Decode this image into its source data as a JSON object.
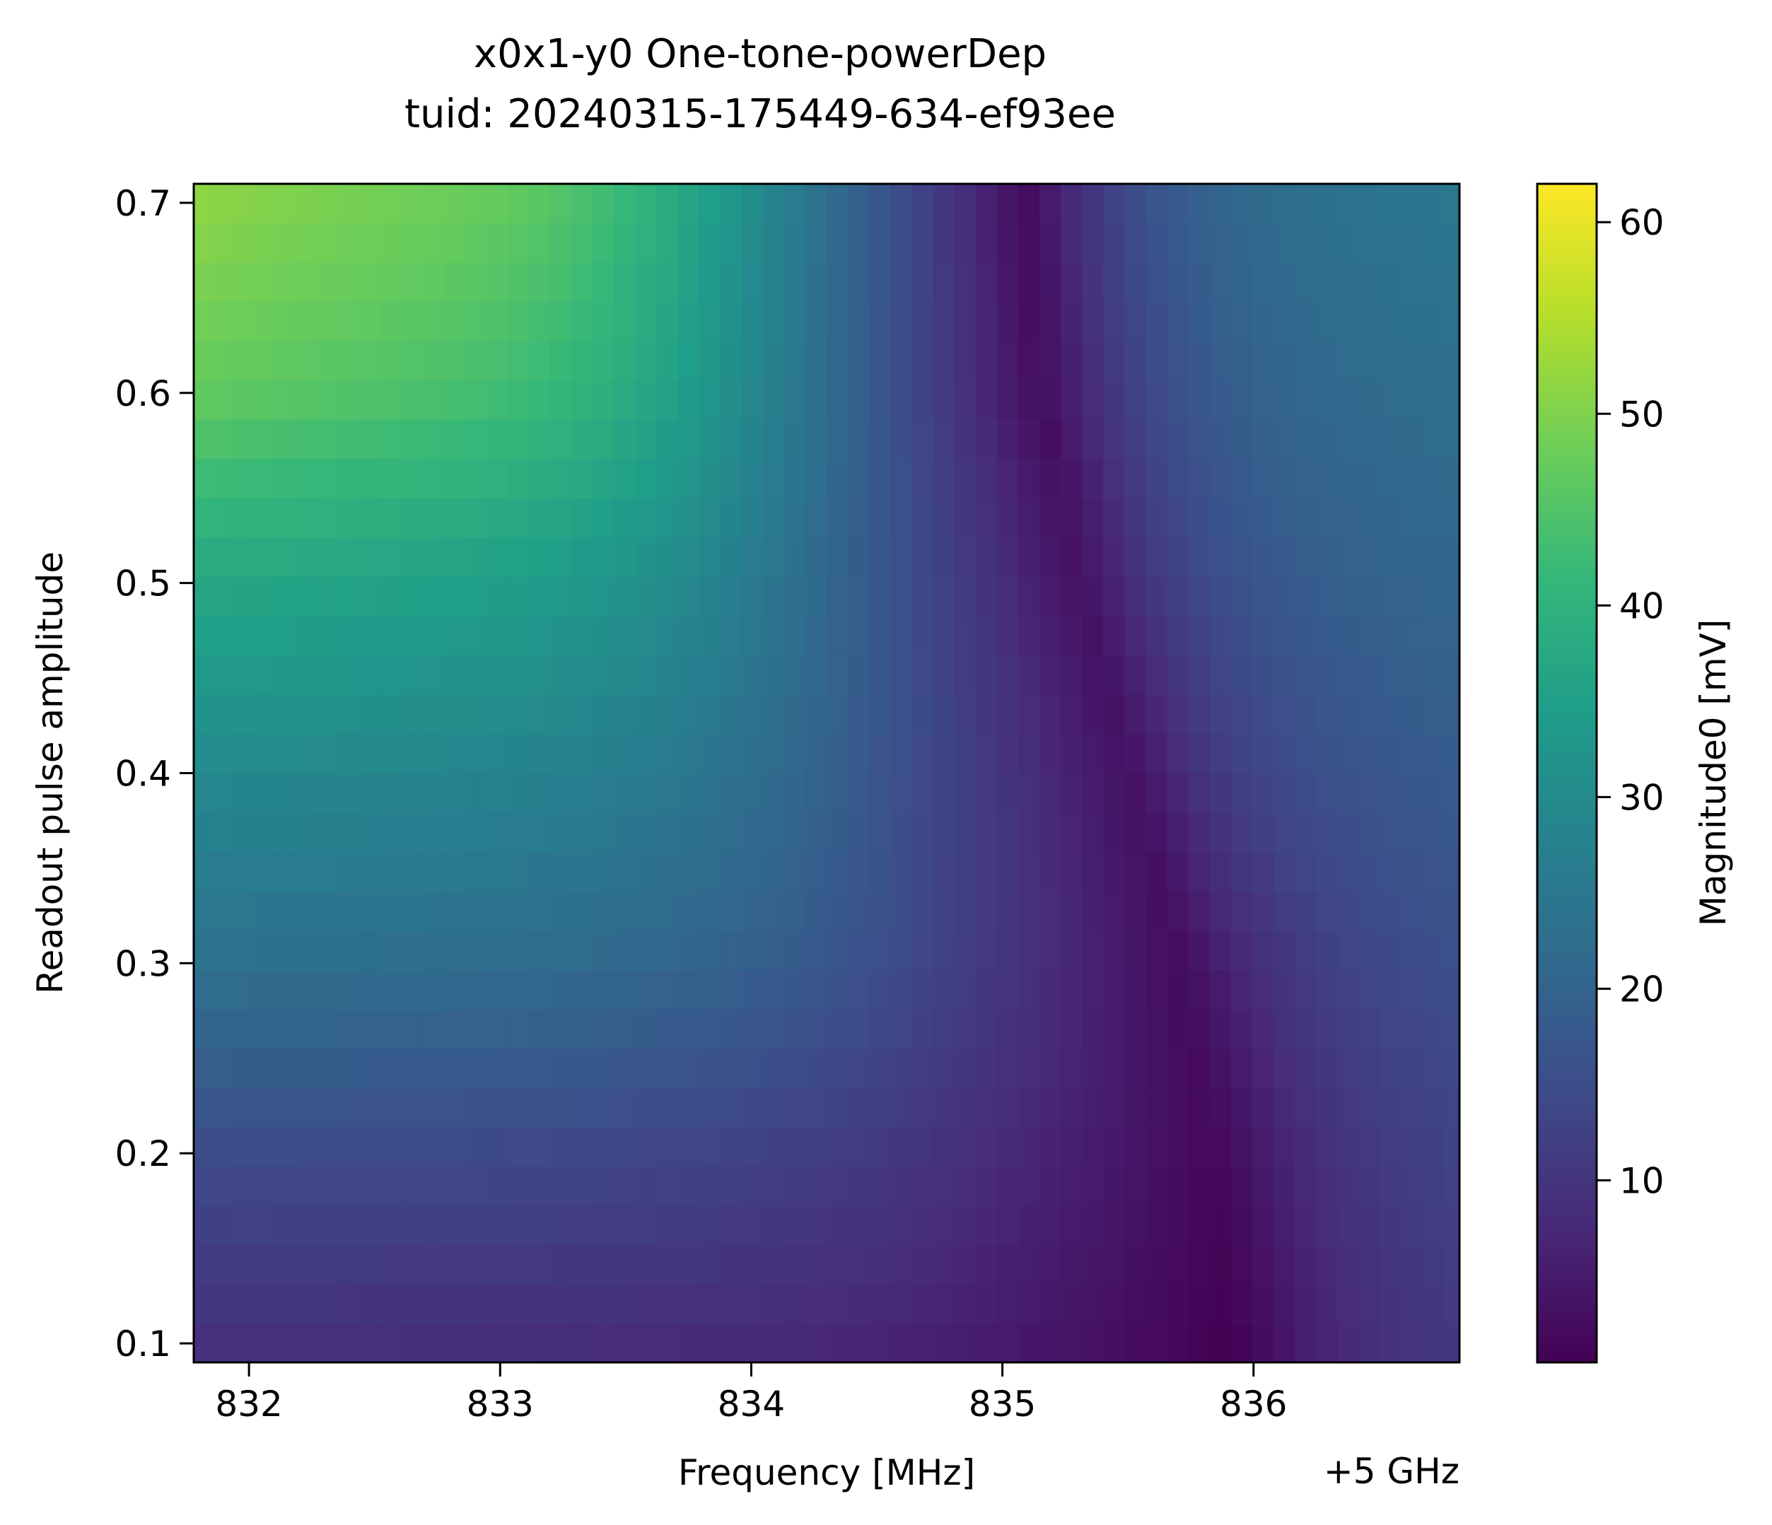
{
  "chart_data": {
    "type": "heatmap",
    "title": [
      "x0x1-y0 One-tone-powerDep",
      "tuid: 20240315-175449-634-ef93ee"
    ],
    "xlabel": "Frequency [MHz]",
    "x_offset_label": "+5 GHz",
    "ylabel": "Readout pulse amplitude",
    "colorbar_label": "Magnitude0 [mV]",
    "colormap": "viridis",
    "xlim": [
      831.78,
      836.82
    ],
    "ylim": [
      0.09,
      0.71
    ],
    "clim": [
      0.5,
      62
    ],
    "x_ticks": [
      832,
      833,
      834,
      835,
      836
    ],
    "x_tick_labels": [
      "832",
      "833",
      "834",
      "835",
      "836"
    ],
    "y_ticks": [
      0.1,
      0.2,
      0.3,
      0.4,
      0.5,
      0.6,
      0.7
    ],
    "y_tick_labels": [
      "0.1",
      "0.2",
      "0.3",
      "0.4",
      "0.5",
      "0.6",
      "0.7"
    ],
    "cbar_ticks": [
      10,
      20,
      30,
      40,
      50,
      60
    ],
    "cbar_tick_labels": [
      "10",
      "20",
      "30",
      "40",
      "50",
      "60"
    ],
    "frequency_range_mhz": [
      831.8,
      836.8
    ],
    "frequency_points": 60,
    "amplitude_range": [
      0.1,
      0.7
    ],
    "amplitude_points": 30,
    "magnitude_profile": [
      {
        "amplitude": 0.1,
        "low_freq_level_mv": 9,
        "dip_freq_mhz": 835.9,
        "dip_level_mv": 0.7
      },
      {
        "amplitude": 0.2,
        "low_freq_level_mv": 15,
        "dip_freq_mhz": 835.85,
        "dip_level_mv": 2
      },
      {
        "amplitude": 0.3,
        "low_freq_level_mv": 24,
        "dip_freq_mhz": 835.7,
        "dip_level_mv": 3
      },
      {
        "amplitude": 0.4,
        "low_freq_level_mv": 31,
        "dip_freq_mhz": 835.5,
        "dip_level_mv": 4
      },
      {
        "amplitude": 0.5,
        "low_freq_level_mv": 40,
        "dip_freq_mhz": 835.3,
        "dip_level_mv": 4
      },
      {
        "amplitude": 0.6,
        "low_freq_level_mv": 52,
        "dip_freq_mhz": 835.15,
        "dip_level_mv": 3
      },
      {
        "amplitude": 0.7,
        "low_freq_level_mv": 58,
        "dip_freq_mhz": 835.1,
        "dip_level_mv": 3
      }
    ]
  }
}
